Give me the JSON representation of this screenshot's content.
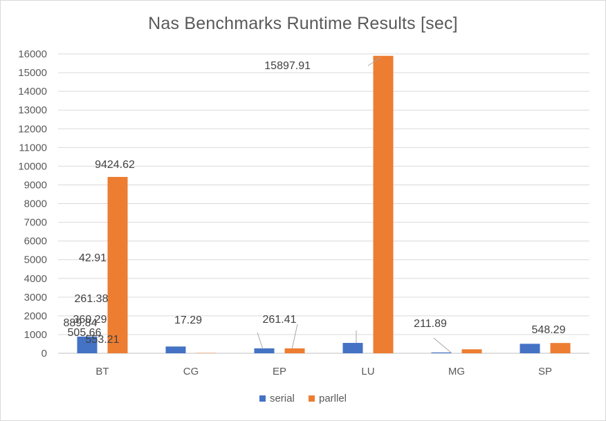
{
  "chart_data": {
    "type": "bar",
    "title": "Nas Benchmarks Runtime Results [sec]",
    "categories": [
      "BT",
      "CG",
      "EP",
      "LU",
      "MG",
      "SP"
    ],
    "series": [
      {
        "name": "serial",
        "color": "#4472c4",
        "values": [
          889.84,
          360.29,
          261.38,
          553.21,
          42.91,
          505.66
        ],
        "labels": [
          "889.84",
          "360.29",
          "261.38",
          "553.21",
          "42.91",
          "505.66"
        ]
      },
      {
        "name": "parllel",
        "color": "#ed7d31",
        "values": [
          9424.62,
          17.29,
          261.41,
          15897.91,
          211.89,
          548.29
        ],
        "labels": [
          "9424.62",
          "17.29",
          "261.41",
          "15897.91",
          "211.89",
          "548.29"
        ]
      }
    ],
    "ylim": [
      0,
      16000
    ],
    "yticks": [
      "0",
      "1000",
      "2000",
      "3000",
      "4000",
      "5000",
      "6000",
      "7000",
      "8000",
      "9000",
      "10000",
      "11000",
      "12000",
      "13000",
      "14000",
      "15000",
      "16000"
    ],
    "grid": true,
    "legend_position": "bottom"
  }
}
